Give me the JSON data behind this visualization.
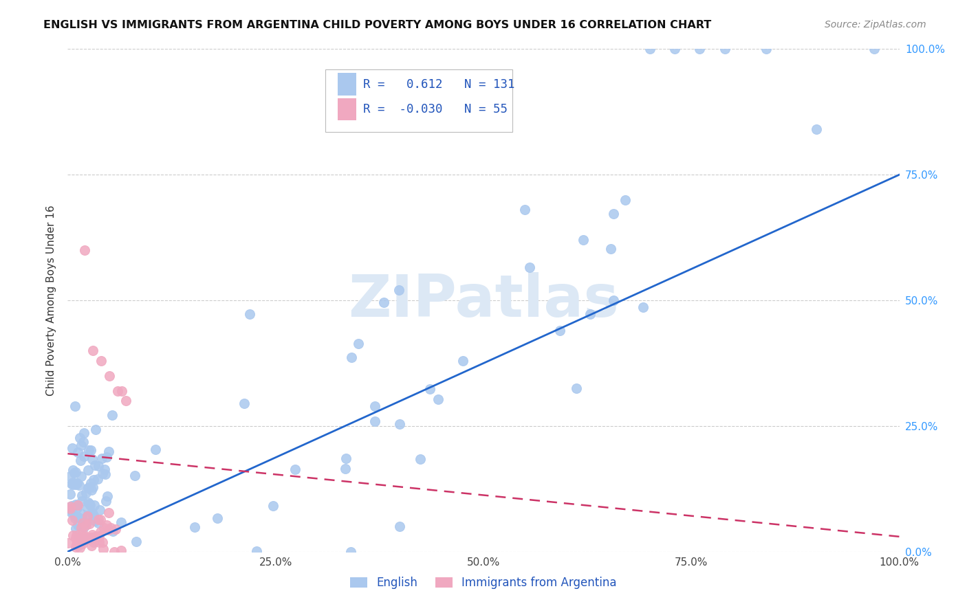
{
  "title": "ENGLISH VS IMMIGRANTS FROM ARGENTINA CHILD POVERTY AMONG BOYS UNDER 16 CORRELATION CHART",
  "source": "Source: ZipAtlas.com",
  "ylabel": "Child Poverty Among Boys Under 16",
  "xlim": [
    0.0,
    1.0
  ],
  "ylim": [
    0.0,
    1.0
  ],
  "xtick_labels": [
    "0.0%",
    "25.0%",
    "50.0%",
    "75.0%",
    "100.0%"
  ],
  "xtick_vals": [
    0.0,
    0.25,
    0.5,
    0.75,
    1.0
  ],
  "ytick_vals": [
    0.0,
    0.25,
    0.5,
    0.75,
    1.0
  ],
  "right_ytick_labels": [
    "0.0%",
    "25.0%",
    "50.0%",
    "75.0%",
    "100.0%"
  ],
  "english_R": 0.612,
  "english_N": 131,
  "argentina_R": -0.03,
  "argentina_N": 55,
  "english_color": "#aac8ee",
  "argentina_color": "#f0a8c0",
  "english_line_color": "#2266cc",
  "argentina_line_color": "#cc3366",
  "watermark_color": "#dce8f5",
  "legend_labels": [
    "English",
    "Immigrants from Argentina"
  ],
  "eng_line_y0": 0.0,
  "eng_line_y1": 0.75,
  "arg_line_y0": 0.195,
  "arg_line_y1": 0.03,
  "title_fontsize": 11.5,
  "source_fontsize": 10,
  "ylabel_fontsize": 11,
  "tick_fontsize": 11,
  "right_tick_color": "#3399ff",
  "grid_color": "#cccccc",
  "legend_border_color": "#bbbbbb"
}
